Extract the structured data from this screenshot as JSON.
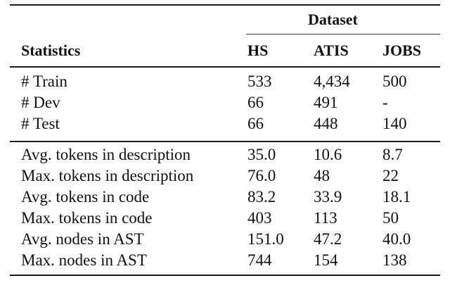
{
  "table": {
    "group_header": "Dataset",
    "columns": [
      "Statistics",
      "HS",
      "ATIS",
      "JOBS"
    ],
    "rows": [
      {
        "label": "# Train",
        "hs": "533",
        "atis": "4,434",
        "jobs": "500"
      },
      {
        "label": "# Dev",
        "hs": "66",
        "atis": "491",
        "jobs": "-"
      },
      {
        "label": "# Test",
        "hs": "66",
        "atis": "448",
        "jobs": "140"
      },
      {
        "label": "Avg. tokens in description",
        "hs": "35.0",
        "atis": "10.6",
        "jobs": "8.7"
      },
      {
        "label": "Max. tokens in description",
        "hs": "76.0",
        "atis": "48",
        "jobs": "22"
      },
      {
        "label": "Avg. tokens in code",
        "hs": "83.2",
        "atis": "33.9",
        "jobs": "18.1"
      },
      {
        "label": "Max. tokens in code",
        "hs": "403",
        "atis": "113",
        "jobs": "50"
      },
      {
        "label": "Avg. nodes in AST",
        "hs": "151.0",
        "atis": "47.2",
        "jobs": "40.0"
      },
      {
        "label": "Max. nodes in AST",
        "hs": "744",
        "atis": "154",
        "jobs": "138"
      }
    ]
  }
}
